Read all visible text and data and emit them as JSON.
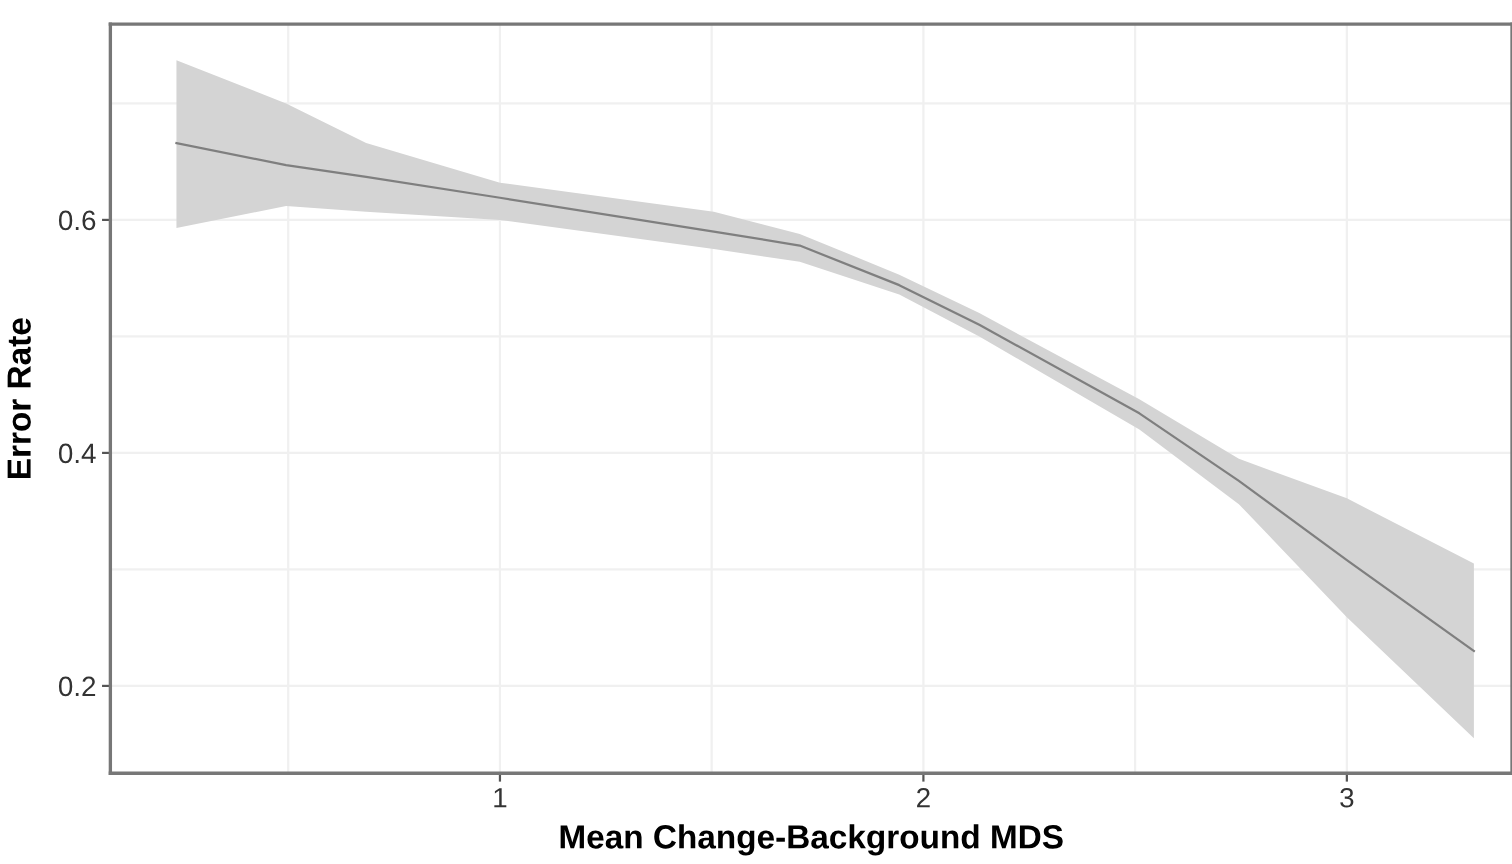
{
  "chart_data": {
    "type": "line",
    "xlabel": "Mean Change-Background MDS",
    "ylabel": "Error Rate",
    "xlim": [
      0.08,
      3.39
    ],
    "ylim": [
      0.125,
      0.768
    ],
    "xticks": [
      1,
      2,
      3
    ],
    "yticks": [
      0.2,
      0.4,
      0.6
    ],
    "grid": true,
    "marker": "none",
    "line_style": "solid",
    "series": [
      {
        "color": "#7f7f7f",
        "x": [
          0.236,
          0.495,
          0.684,
          1.0,
          1.505,
          1.708,
          1.943,
          2.132,
          2.51,
          2.745,
          3.0,
          3.3
        ],
        "values": [
          0.666,
          0.647,
          0.637,
          0.619,
          0.59,
          0.578,
          0.544,
          0.51,
          0.434,
          0.376,
          0.308,
          0.23
        ],
        "upper": [
          0.737,
          0.7,
          0.666,
          0.632,
          0.607,
          0.588,
          0.553,
          0.52,
          0.446,
          0.395,
          0.361,
          0.305
        ],
        "lower": [
          0.593,
          0.612,
          0.607,
          0.6,
          0.575,
          0.564,
          0.536,
          0.5,
          0.42,
          0.356,
          0.259,
          0.155
        ]
      }
    ]
  }
}
